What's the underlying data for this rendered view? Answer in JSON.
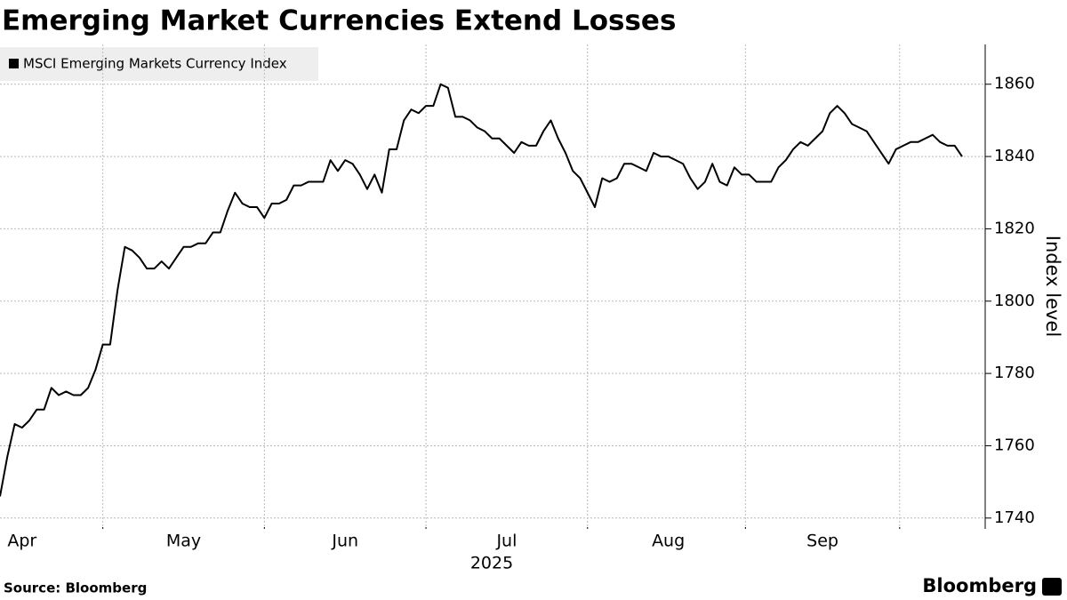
{
  "chart_data": {
    "type": "line",
    "title": "Emerging Market Currencies Extend Losses",
    "ylabel": "Index level",
    "xlabel": "2025",
    "source": "Source: Bloomberg",
    "logo": "Bloomberg",
    "categories": [
      null,
      null,
      null,
      "Apr",
      null,
      null,
      null,
      null,
      null,
      null,
      null,
      null,
      null,
      null,
      null,
      null,
      null,
      null,
      null,
      null,
      null,
      null,
      null,
      null,
      null,
      "May",
      null,
      null,
      null,
      null,
      null,
      null,
      null,
      null,
      null,
      null,
      null,
      null,
      null,
      null,
      null,
      null,
      null,
      null,
      null,
      null,
      null,
      "Jun",
      null,
      null,
      null,
      null,
      null,
      null,
      null,
      null,
      null,
      null,
      null,
      null,
      null,
      null,
      null,
      null,
      null,
      null,
      null,
      null,
      null,
      "Jul",
      null,
      null,
      null,
      null,
      null,
      null,
      null,
      null,
      null,
      null,
      null,
      null,
      null,
      null,
      null,
      null,
      null,
      null,
      null,
      null,
      null,
      "Aug",
      null,
      null,
      null,
      null,
      null,
      null,
      null,
      null,
      null,
      null,
      null,
      null,
      null,
      null,
      null,
      null,
      null,
      null,
      null,
      null,
      "Sep",
      null,
      null,
      null,
      null,
      null,
      null,
      null,
      null,
      null,
      null,
      null,
      null,
      null,
      null,
      null,
      null,
      null,
      null,
      null
    ],
    "series": [
      {
        "name": "MSCI Emerging Markets Currency Index",
        "color": "#000000",
        "values": [
          1746,
          1757,
          1766,
          1765,
          1767,
          1770,
          1770,
          1776,
          1774,
          1775,
          1774,
          1774,
          1776,
          1781,
          1788,
          1788,
          1803,
          1815,
          1814,
          1812,
          1809,
          1809,
          1811,
          1809,
          1812,
          1815,
          1815,
          1816,
          1816,
          1819,
          1819,
          1825,
          1830,
          1827,
          1826,
          1826,
          1823,
          1827,
          1827,
          1828,
          1832,
          1832,
          1833,
          1833,
          1833,
          1839,
          1836,
          1839,
          1838,
          1835,
          1831,
          1835,
          1830,
          1842,
          1842,
          1850,
          1853,
          1852,
          1854,
          1854,
          1860,
          1859,
          1851,
          1851,
          1850,
          1848,
          1847,
          1845,
          1845,
          1843,
          1841,
          1844,
          1843,
          1843,
          1847,
          1850,
          1845,
          1841,
          1836,
          1834,
          1830,
          1826,
          1834,
          1833,
          1834,
          1838,
          1838,
          1837,
          1836,
          1841,
          1840,
          1840,
          1839,
          1838,
          1834,
          1831,
          1833,
          1838,
          1833,
          1832,
          1837,
          1835,
          1835,
          1833,
          1833,
          1833,
          1837,
          1839,
          1842,
          1844,
          1843,
          1845,
          1847,
          1852,
          1854,
          1852,
          1849,
          1848,
          1847,
          1844,
          1841,
          1838,
          1842,
          1843,
          1844,
          1844,
          1845,
          1846,
          1844,
          1843,
          1843,
          1840
        ]
      }
    ],
    "ylim": [
      1737,
      1871
    ],
    "yticks": [
      1740,
      1760,
      1780,
      1800,
      1820,
      1840,
      1860
    ],
    "grid": true
  }
}
